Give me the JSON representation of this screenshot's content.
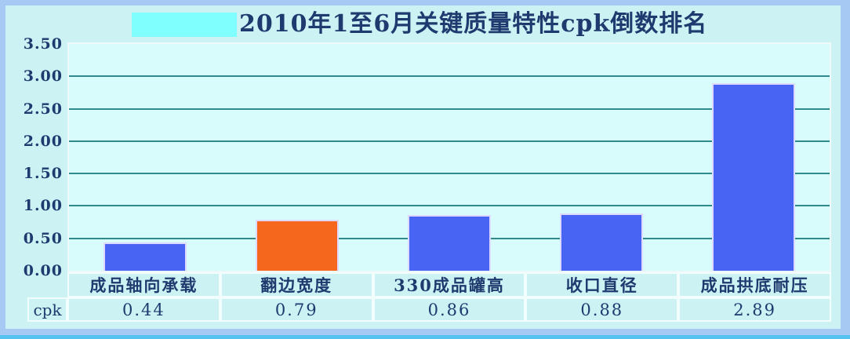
{
  "title": "2010年1至6月关键质量特性cpk倒数排名",
  "table": {
    "row_label": "cpk"
  },
  "y_axis": {
    "ticks": [
      "3.50",
      "3.00",
      "2.50",
      "2.00",
      "1.50",
      "1.00",
      "0.50",
      "0.00"
    ],
    "min": 0,
    "max": 3.5,
    "step": 0.5
  },
  "colors": {
    "frame": "#a6c9f3",
    "panel_background": "#cdf2f4",
    "plot_background": "#d8fcfc",
    "gridline": "#2e8b8b",
    "text": "#1e3a6e",
    "bar_blue": "#4765f2",
    "bar_orange": "#f4671d",
    "title_highlight": "#80ffff",
    "bottom_strip": "#55c2f0",
    "cell_border": "#f2fdfd"
  },
  "chart_data": {
    "type": "bar",
    "title": "2010年1至6月关键质量特性cpk倒数排名",
    "categories": [
      "成品轴向承载",
      "翻边宽度",
      "330成品罐高",
      "收口直径",
      "成品拱底耐压"
    ],
    "series": [
      {
        "name": "cpk",
        "values": [
          0.44,
          0.79,
          0.86,
          0.88,
          2.89
        ]
      }
    ],
    "value_labels": [
      "0.44",
      "0.79",
      "0.86",
      "0.88",
      "2.89"
    ],
    "bar_colors": [
      "#4765f2",
      "#f4671d",
      "#4765f2",
      "#4765f2",
      "#4765f2"
    ],
    "xlabel": "",
    "ylabel": "",
    "ylim": [
      0,
      3.5
    ],
    "grid": true,
    "legend_position": "none"
  }
}
